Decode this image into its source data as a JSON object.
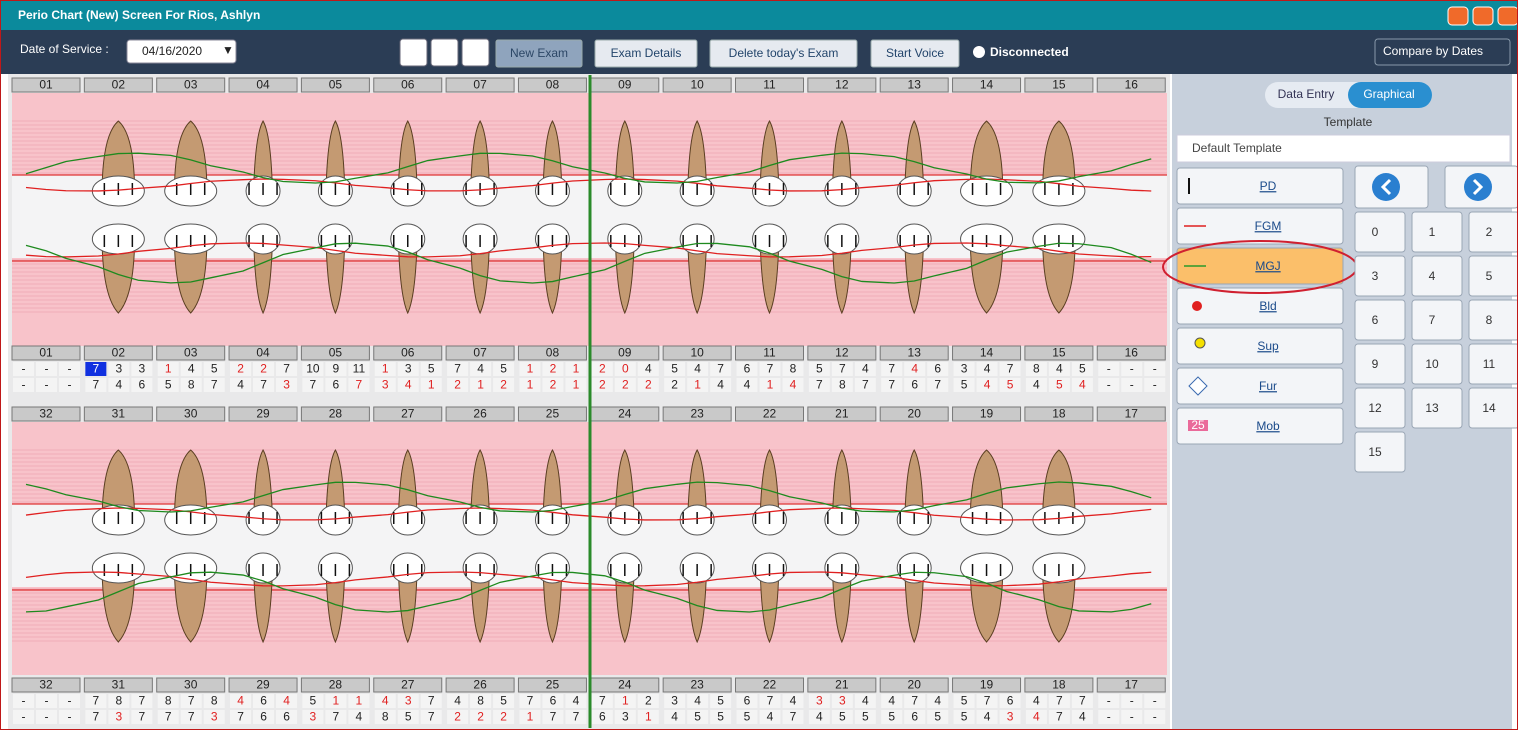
{
  "window": {
    "title": "Perio Chart (New) Screen For Rios, Ashlyn"
  },
  "toolbar": {
    "date_label": "Date of Service :",
    "date": "04/16/2020",
    "buttons": [
      "New Exam",
      "Exam Details",
      "Delete today's Exam",
      "Start Voice"
    ],
    "status": "Disconnected",
    "compare": "Compare by Dates"
  },
  "upper": {
    "teeth": [
      {
        "tooth": "01",
        "row1": [
          "-",
          "-",
          "-"
        ],
        "row2": [
          "-",
          "-",
          "-"
        ],
        "red1": [],
        "red2": []
      },
      {
        "tooth": "02",
        "row1": [
          "7",
          "3",
          "3"
        ],
        "row2": [
          "7",
          "4",
          "6"
        ],
        "red1": [],
        "red2": [],
        "selected1": [
          0
        ]
      },
      {
        "tooth": "03",
        "row1": [
          "1",
          "4",
          "5"
        ],
        "row2": [
          "5",
          "8",
          "7"
        ],
        "red1": [
          0
        ],
        "red2": []
      },
      {
        "tooth": "04",
        "row1": [
          "2",
          "2",
          "7"
        ],
        "row2": [
          "4",
          "7",
          "3"
        ],
        "red1": [
          0,
          1
        ],
        "red2": [
          2
        ]
      },
      {
        "tooth": "05",
        "row1": [
          "10",
          "9",
          "11"
        ],
        "row2": [
          "7",
          "6",
          "7"
        ],
        "red1": [],
        "red2": [
          2
        ]
      },
      {
        "tooth": "06",
        "row1": [
          "1",
          "3",
          "5"
        ],
        "row2": [
          "3",
          "4",
          "1"
        ],
        "red1": [
          0
        ],
        "red2": [
          0,
          1,
          2
        ]
      },
      {
        "tooth": "07",
        "row1": [
          "7",
          "4",
          "5"
        ],
        "row2": [
          "2",
          "1",
          "2"
        ],
        "red1": [],
        "red2": [
          0,
          1,
          2
        ]
      },
      {
        "tooth": "08",
        "row1": [
          "1",
          "2",
          "1"
        ],
        "row2": [
          "1",
          "2",
          "1"
        ],
        "red1": [
          0,
          1,
          2
        ],
        "red2": [
          0,
          1,
          2
        ]
      },
      {
        "tooth": "09",
        "row1": [
          "2",
          "0",
          "4"
        ],
        "row2": [
          "2",
          "2",
          "2"
        ],
        "red1": [
          0,
          1
        ],
        "red2": [
          0,
          1,
          2
        ]
      },
      {
        "tooth": "10",
        "row1": [
          "5",
          "4",
          "7"
        ],
        "row2": [
          "2",
          "1",
          "4"
        ],
        "red1": [],
        "red2": [
          1
        ]
      },
      {
        "tooth": "11",
        "row1": [
          "6",
          "7",
          "8"
        ],
        "row2": [
          "4",
          "1",
          "4"
        ],
        "red1": [],
        "red2": [
          1,
          2
        ]
      },
      {
        "tooth": "12",
        "row1": [
          "5",
          "7",
          "4"
        ],
        "row2": [
          "7",
          "8",
          "7"
        ],
        "red1": [],
        "red2": []
      },
      {
        "tooth": "13",
        "row1": [
          "7",
          "4",
          "6"
        ],
        "row2": [
          "7",
          "6",
          "7"
        ],
        "red1": [
          1
        ],
        "red2": []
      },
      {
        "tooth": "14",
        "row1": [
          "3",
          "4",
          "7"
        ],
        "row2": [
          "5",
          "4",
          "5"
        ],
        "red1": [],
        "red2": [
          1,
          2
        ]
      },
      {
        "tooth": "15",
        "row1": [
          "8",
          "4",
          "5"
        ],
        "row2": [
          "4",
          "5",
          "4"
        ],
        "red1": [],
        "red2": [
          1,
          2
        ]
      },
      {
        "tooth": "16",
        "row1": [
          "-",
          "-",
          "-"
        ],
        "row2": [
          "-",
          "-",
          "-"
        ],
        "red1": [],
        "red2": []
      }
    ]
  },
  "lower": {
    "teeth": [
      {
        "tooth": "32",
        "row1": [
          "-",
          "-",
          "-"
        ],
        "row2": [
          "-",
          "-",
          "-"
        ],
        "red1": [],
        "red2": []
      },
      {
        "tooth": "31",
        "row1": [
          "7",
          "8",
          "7"
        ],
        "row2": [
          "7",
          "3",
          "7"
        ],
        "red1": [],
        "red2": [
          1
        ]
      },
      {
        "tooth": "30",
        "row1": [
          "8",
          "7",
          "8"
        ],
        "row2": [
          "7",
          "7",
          "3"
        ],
        "red1": [],
        "red2": [
          2
        ]
      },
      {
        "tooth": "29",
        "row1": [
          "4",
          "6",
          "4"
        ],
        "row2": [
          "7",
          "6",
          "6"
        ],
        "red1": [
          0,
          2
        ],
        "red2": []
      },
      {
        "tooth": "28",
        "row1": [
          "5",
          "1",
          "1"
        ],
        "row2": [
          "3",
          "7",
          "4"
        ],
        "red1": [
          1,
          2
        ],
        "red2": [
          0
        ]
      },
      {
        "tooth": "27",
        "row1": [
          "4",
          "3",
          "7"
        ],
        "row2": [
          "8",
          "5",
          "7"
        ],
        "red1": [
          0,
          1
        ],
        "red2": []
      },
      {
        "tooth": "26",
        "row1": [
          "4",
          "8",
          "5"
        ],
        "row2": [
          "2",
          "2",
          "2"
        ],
        "red1": [],
        "red2": [
          0,
          1,
          2
        ]
      },
      {
        "tooth": "25",
        "row1": [
          "7",
          "6",
          "4"
        ],
        "row2": [
          "1",
          "7",
          "7"
        ],
        "red1": [],
        "red2": [
          0
        ]
      },
      {
        "tooth": "24",
        "row1": [
          "7",
          "1",
          "2"
        ],
        "row2": [
          "6",
          "3",
          "1"
        ],
        "red1": [
          1
        ],
        "red2": [
          2
        ]
      },
      {
        "tooth": "23",
        "row1": [
          "3",
          "4",
          "5"
        ],
        "row2": [
          "4",
          "5",
          "5"
        ],
        "red1": [],
        "red2": []
      },
      {
        "tooth": "22",
        "row1": [
          "6",
          "7",
          "4"
        ],
        "row2": [
          "5",
          "4",
          "7"
        ],
        "red1": [],
        "red2": []
      },
      {
        "tooth": "21",
        "row1": [
          "3",
          "3",
          "4"
        ],
        "row2": [
          "4",
          "5",
          "5"
        ],
        "red1": [
          0,
          1
        ],
        "red2": []
      },
      {
        "tooth": "20",
        "row1": [
          "4",
          "7",
          "4"
        ],
        "row2": [
          "5",
          "6",
          "5"
        ],
        "red1": [],
        "red2": []
      },
      {
        "tooth": "19",
        "row1": [
          "5",
          "7",
          "6"
        ],
        "row2": [
          "5",
          "4",
          "3"
        ],
        "red1": [],
        "red2": [
          2
        ]
      },
      {
        "tooth": "18",
        "row1": [
          "4",
          "7",
          "7"
        ],
        "row2": [
          "4",
          "7",
          "4"
        ],
        "red1": [],
        "red2": [
          0
        ]
      },
      {
        "tooth": "17",
        "row1": [
          "-",
          "-",
          "-"
        ],
        "row2": [
          "-",
          "-",
          "-"
        ],
        "red1": [],
        "red2": []
      }
    ]
  },
  "panel": {
    "view_toggle": [
      "Data Entry",
      "Graphical"
    ],
    "selected_view": 1,
    "template_label": "Template",
    "template": "Default Template",
    "legend": [
      "PD",
      "FGM",
      "MGJ",
      "Bld",
      "Sup",
      "Fur",
      "Mob"
    ],
    "selected_legend": 2,
    "mob_icon": "25",
    "keypad": [
      "0",
      "1",
      "2",
      "3",
      "4",
      "5",
      "6",
      "7",
      "8",
      "9",
      "10",
      "11",
      "12",
      "13",
      "14",
      "15"
    ]
  }
}
